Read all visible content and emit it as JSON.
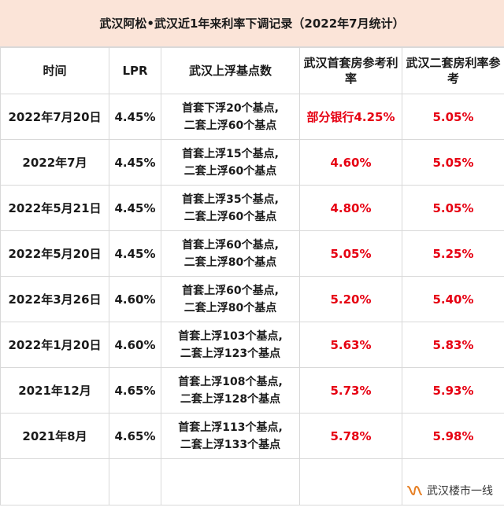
{
  "title": "武汉阿松•武汉近1年来利率下调记录（2022年7月统计）",
  "headers": {
    "time": "时间",
    "lpr": "LPR",
    "float": "武汉上浮基点数",
    "first": "武汉首套房参考利率",
    "second": "武汉二套房利率参考"
  },
  "rows": [
    {
      "time": "2022年7月20日",
      "lpr": "4.45%",
      "float1": "首套下浮20个基点,",
      "float2": "二套上浮60个基点",
      "first": "部分银行4.25%",
      "second": "5.05%"
    },
    {
      "time": "2022年7月",
      "lpr": "4.45%",
      "float1": "首套上浮15个基点,",
      "float2": "二套上浮60个基点",
      "first": "4.60%",
      "second": "5.05%"
    },
    {
      "time": "2022年5月21日",
      "lpr": "4.45%",
      "float1": "首套上浮35个基点,",
      "float2": "二套上浮60个基点",
      "first": "4.80%",
      "second": "5.05%"
    },
    {
      "time": "2022年5月20日",
      "lpr": "4.45%",
      "float1": "首套上浮60个基点,",
      "float2": "二套上浮80个基点",
      "first": "5.05%",
      "second": "5.25%"
    },
    {
      "time": "2022年3月26日",
      "lpr": "4.60%",
      "float1": "首套上浮60个基点,",
      "float2": "二套上浮80个基点",
      "first": "5.20%",
      "second": "5.40%"
    },
    {
      "time": "2022年1月20日",
      "lpr": "4.60%",
      "float1": "首套上浮103个基点,",
      "float2": "二套上浮123个基点",
      "first": "5.63%",
      "second": "5.83%"
    },
    {
      "time": "2021年12月",
      "lpr": "4.65%",
      "float1": "首套上浮108个基点,",
      "float2": "二套上浮128个基点",
      "first": "5.73%",
      "second": "5.93%"
    },
    {
      "time": "2021年8月",
      "lpr": "4.65%",
      "float1": "首套上浮113个基点,",
      "float2": "二套上浮133个基点",
      "first": "5.78%",
      "second": "5.98%"
    }
  ],
  "watermark": "武汉楼市一线",
  "colors": {
    "highlight": "#e60012",
    "title_bg": "#fbe4d8",
    "grid": "#d9d9d9"
  },
  "icons": {
    "watermark": "wechat-channel-icon"
  }
}
